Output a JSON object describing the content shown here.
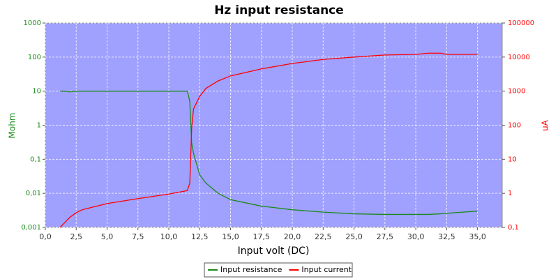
{
  "chart_data": {
    "type": "line",
    "title": "Hz input resistance",
    "xlabel": "Input volt (DC)",
    "ylabel": "Mohm",
    "y2label": "uA",
    "x": [
      1.2,
      1.5,
      2,
      2.5,
      3,
      5,
      7.5,
      10,
      11.5,
      11.7,
      11.85,
      12,
      12.5,
      13,
      14,
      15,
      17.5,
      20,
      22.5,
      25,
      27.5,
      30,
      31,
      32,
      32.5,
      35
    ],
    "series": [
      {
        "name": "Input resistance",
        "color": "#1a8a1a",
        "axis": "y",
        "values": [
          10,
          10,
          9.5,
          10,
          10,
          10,
          10,
          10,
          10,
          5,
          0.3,
          0.15,
          0.035,
          0.02,
          0.01,
          0.0065,
          0.0042,
          0.0033,
          0.0028,
          0.0025,
          0.0024,
          0.0024,
          0.0024,
          0.0025,
          0.0026,
          0.003
        ]
      },
      {
        "name": "Input current",
        "color": "#ff0000",
        "axis": "y2",
        "values": [
          0.1,
          0.13,
          0.2,
          0.27,
          0.33,
          0.5,
          0.7,
          0.95,
          1.2,
          2,
          80,
          300,
          700,
          1200,
          2000,
          2800,
          4500,
          6500,
          8500,
          10000,
          11500,
          12000,
          13000,
          13000,
          12000,
          12000
        ]
      }
    ],
    "xlim": [
      0,
      37
    ],
    "xticks": [
      {
        "value": 0,
        "label": "0,0"
      },
      {
        "value": 2.5,
        "label": "2,5"
      },
      {
        "value": 5,
        "label": "5,0"
      },
      {
        "value": 7.5,
        "label": "7,5"
      },
      {
        "value": 10,
        "label": "10,0"
      },
      {
        "value": 12.5,
        "label": "12,5"
      },
      {
        "value": 15,
        "label": "15,0"
      },
      {
        "value": 17.5,
        "label": "17,5"
      },
      {
        "value": 20,
        "label": "20,0"
      },
      {
        "value": 22.5,
        "label": "22,5"
      },
      {
        "value": 25,
        "label": "25,0"
      },
      {
        "value": 27.5,
        "label": "27,5"
      },
      {
        "value": 30,
        "label": "30,0"
      },
      {
        "value": 32.5,
        "label": "32,5"
      },
      {
        "value": 35,
        "label": "35,0"
      }
    ],
    "ylim": [
      0.001,
      1000
    ],
    "ylog": true,
    "yticks": [
      {
        "value": 0.001,
        "label": "0,001"
      },
      {
        "value": 0.01,
        "label": "0,01"
      },
      {
        "value": 0.1,
        "label": "0,1"
      },
      1,
      10,
      100,
      1000
    ],
    "y2lim": [
      0.1,
      100000
    ],
    "y2log": true,
    "y2ticks": [
      {
        "value": 0.1,
        "label": "0,1"
      },
      1,
      10,
      100,
      1000,
      10000,
      100000
    ],
    "grid": true,
    "legend": "bottom"
  }
}
